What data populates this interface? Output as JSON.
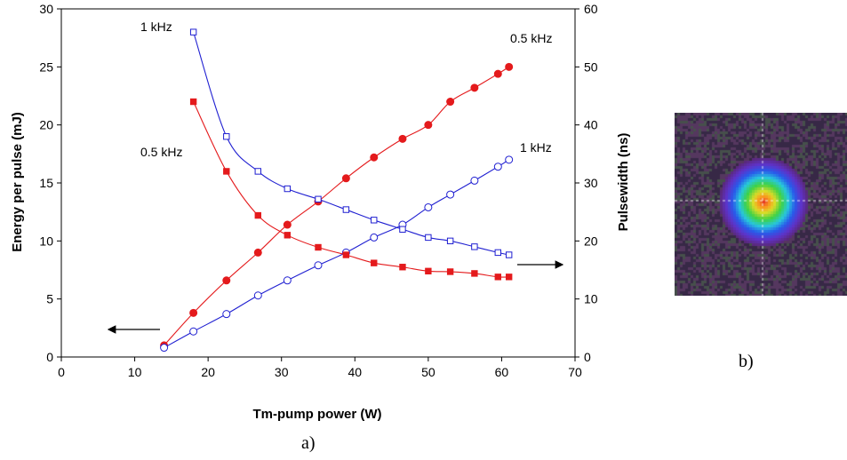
{
  "chart_data": {
    "type": "scatter",
    "xlabel": "Tm-pump power (W)",
    "ylabel": "Energy per pulse (mJ)",
    "y2label": "Pulsewidth (ns)",
    "xlim": [
      0,
      70
    ],
    "ylim": [
      0,
      30
    ],
    "y2lim": [
      0,
      60
    ],
    "xticks": [
      0,
      10,
      20,
      30,
      40,
      50,
      60,
      70
    ],
    "yticks": [
      0,
      5,
      10,
      15,
      20,
      25,
      30
    ],
    "y2ticks": [
      0,
      10,
      20,
      30,
      40,
      50,
      60
    ],
    "grid": false,
    "series": [
      {
        "axis": "left",
        "marker": "filled-circle",
        "color": "#e41a1c",
        "label_text": "0.5 kHz",
        "x": [
          14,
          18,
          22.5,
          26.8,
          30.8,
          35,
          38.8,
          42.6,
          46.5,
          50,
          53,
          56.3,
          59.5,
          61
        ],
        "y": [
          1.0,
          3.8,
          6.6,
          9.0,
          11.4,
          13.4,
          15.4,
          17.2,
          18.8,
          20.0,
          22.0,
          23.2,
          24.4,
          25.0
        ]
      },
      {
        "axis": "left",
        "marker": "open-circle",
        "color": "#1f1fd1",
        "label_text": "1 kHz",
        "x": [
          14,
          18,
          22.5,
          26.8,
          30.8,
          35,
          38.8,
          42.6,
          46.5,
          50,
          53,
          56.3,
          59.5,
          61
        ],
        "y": [
          0.8,
          2.2,
          3.7,
          5.3,
          6.6,
          7.9,
          9.0,
          10.3,
          11.4,
          12.9,
          14.0,
          15.2,
          16.4,
          17.0
        ]
      },
      {
        "axis": "right",
        "marker": "filled-square",
        "color": "#e41a1c",
        "label_text": "0.5 kHz",
        "x": [
          18,
          22.5,
          26.8,
          30.8,
          35,
          38.8,
          42.6,
          46.5,
          50,
          53,
          56.3,
          59.5,
          61
        ],
        "y": [
          44,
          32,
          24.4,
          21.0,
          18.9,
          17.6,
          16.2,
          15.5,
          14.8,
          14.7,
          14.4,
          13.8,
          13.8
        ]
      },
      {
        "axis": "right",
        "marker": "open-square",
        "color": "#1f1fd1",
        "label_text": "1 kHz",
        "x": [
          18,
          22.5,
          26.8,
          30.8,
          35,
          38.8,
          42.6,
          46.5,
          50,
          53,
          56.3,
          59.5,
          61
        ],
        "y": [
          56,
          38,
          32,
          29,
          27.2,
          25.4,
          23.6,
          22.0,
          20.6,
          20.0,
          19.0,
          18.0,
          17.6
        ]
      }
    ]
  },
  "panel_labels": {
    "a": "a)",
    "b": "b)"
  }
}
